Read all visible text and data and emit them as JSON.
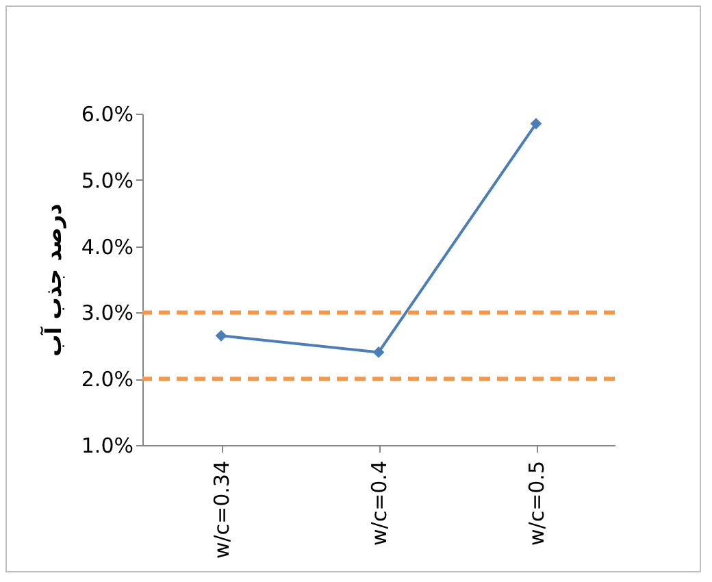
{
  "chart_data": {
    "type": "line",
    "ylabel": "درصد جذب آب",
    "categories": [
      "w/c=0.34",
      "w/c=0.4",
      "w/c=0.5"
    ],
    "values": [
      2.65,
      2.4,
      5.85
    ],
    "color": "#4a7ebb",
    "marker": "diamond",
    "line_style": "solid",
    "ylim": [
      1,
      6
    ],
    "yticks": [
      {
        "value": 1,
        "label": "1.0%"
      },
      {
        "value": 2,
        "label": "2.0%"
      },
      {
        "value": 3,
        "label": "3.0%"
      },
      {
        "value": 4,
        "label": "4.0%"
      },
      {
        "value": 5,
        "label": "5.0%"
      },
      {
        "value": 6,
        "label": "6.0%"
      }
    ],
    "grid": false,
    "ref_lines": [
      {
        "axis": "y",
        "value": 3,
        "color": "#f79646",
        "line_style": "dashed"
      },
      {
        "axis": "y",
        "value": 2,
        "color": "#f79646",
        "line_style": "dashed"
      }
    ]
  }
}
